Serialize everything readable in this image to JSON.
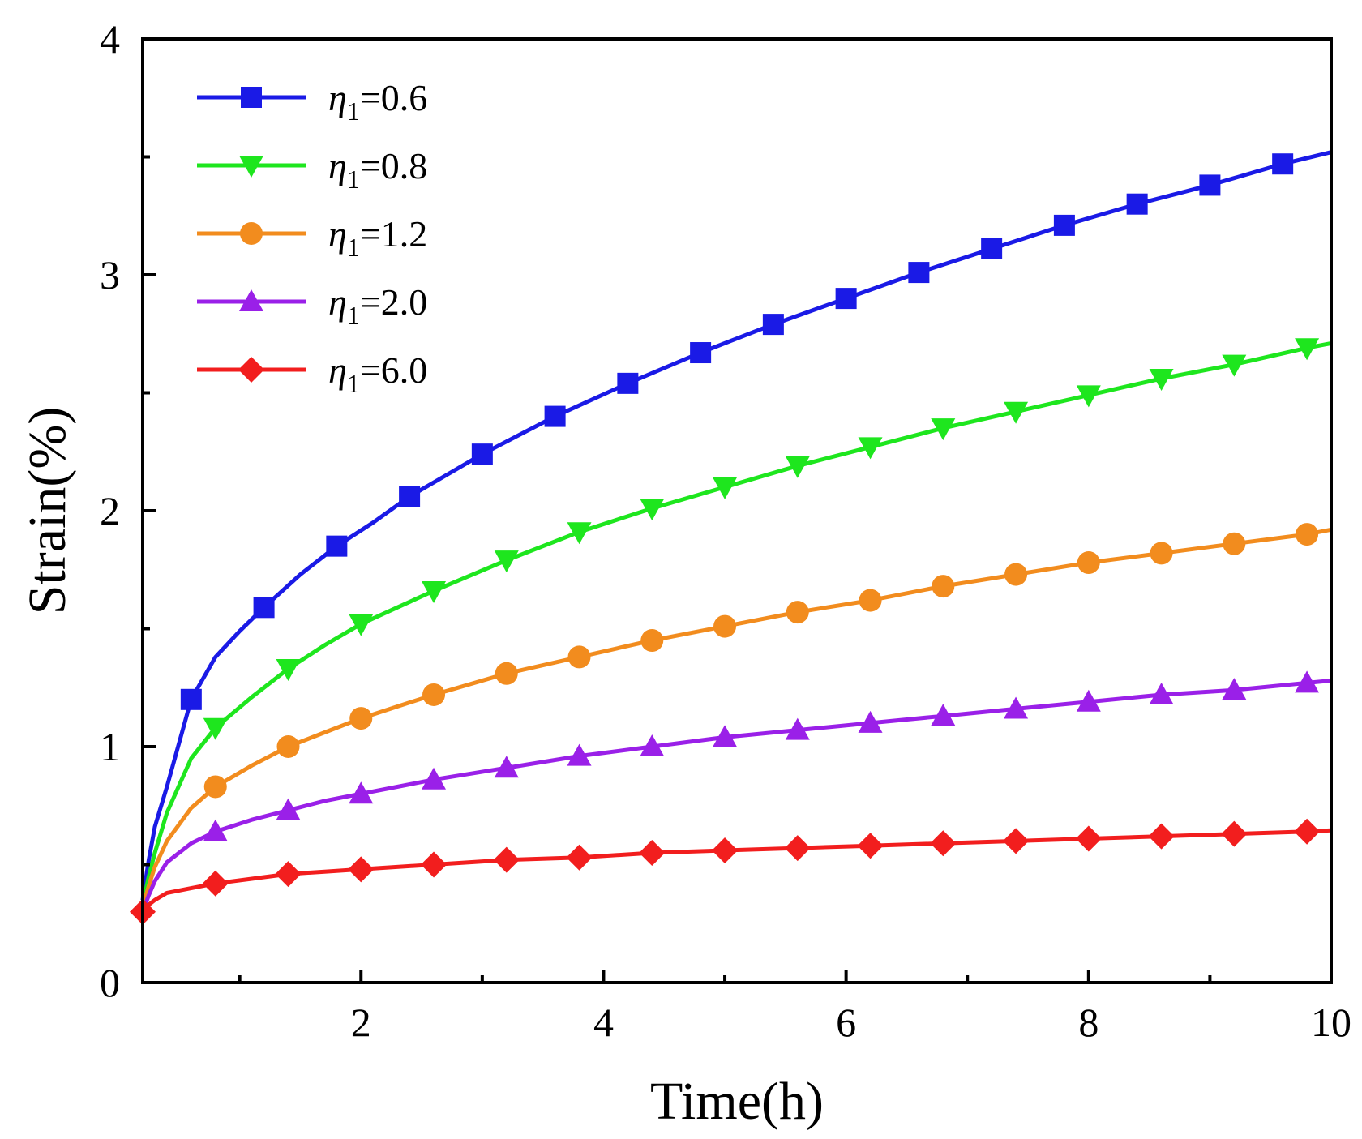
{
  "chart_data": {
    "type": "line",
    "title": "",
    "xlabel": "Time(h)",
    "ylabel": "Strain(%)",
    "xlim": [
      0.2,
      10
    ],
    "ylim": [
      0,
      4
    ],
    "x_major_ticks": [
      2,
      4,
      6,
      8,
      10
    ],
    "x_minor_ticks": [
      1,
      3,
      5,
      7,
      9
    ],
    "y_major_ticks": [
      0,
      1,
      2,
      3,
      4
    ],
    "y_minor_ticks": [
      0.5,
      1.5,
      2.5,
      3.5
    ],
    "x_tick_labels": [
      "2",
      "4",
      "6",
      "8",
      "10"
    ],
    "y_tick_labels": [
      "0",
      "1",
      "2",
      "3",
      "4"
    ],
    "grid": false,
    "legend_position": "top-left",
    "series": [
      {
        "name": "η1=0.6",
        "symbol": "η",
        "subscript": "1",
        "value_label": "=0.6",
        "color": "#1a1ae6",
        "marker": "square",
        "x": [
          0.2,
          0.25,
          0.3,
          0.4,
          0.6,
          0.8,
          1.0,
          1.2,
          1.5,
          1.8,
          2.1,
          2.4,
          2.7,
          3.0,
          3.6,
          4.2,
          4.8,
          5.4,
          6.0,
          6.6,
          7.2,
          7.8,
          8.4,
          9.0,
          9.6,
          10.0
        ],
        "y": [
          0.35,
          0.52,
          0.66,
          0.83,
          1.2,
          1.38,
          1.49,
          1.59,
          1.73,
          1.85,
          1.95,
          2.06,
          2.15,
          2.24,
          2.4,
          2.54,
          2.67,
          2.79,
          2.9,
          3.01,
          3.11,
          3.21,
          3.3,
          3.38,
          3.47,
          3.52
        ],
        "markers_x": [
          0.6,
          1.2,
          1.8,
          2.4,
          3.0,
          3.6,
          4.2,
          4.8,
          5.4,
          6.0,
          6.6,
          7.2,
          7.8,
          8.4,
          9.0,
          9.6
        ]
      },
      {
        "name": "η1=0.8",
        "symbol": "η",
        "subscript": "1",
        "value_label": "=0.8",
        "color": "#1ee61e",
        "marker": "triangle-down",
        "x": [
          0.2,
          0.25,
          0.3,
          0.4,
          0.6,
          0.8,
          1.1,
          1.4,
          1.7,
          2.0,
          2.3,
          2.6,
          3.2,
          3.8,
          4.4,
          5.0,
          5.6,
          6.2,
          6.8,
          7.4,
          8.0,
          8.6,
          9.2,
          9.8,
          10.0
        ],
        "y": [
          0.33,
          0.45,
          0.55,
          0.72,
          0.95,
          1.08,
          1.21,
          1.33,
          1.43,
          1.52,
          1.59,
          1.66,
          1.79,
          1.91,
          2.01,
          2.1,
          2.19,
          2.27,
          2.35,
          2.42,
          2.49,
          2.56,
          2.62,
          2.69,
          2.71
        ],
        "markers_x": [
          0.8,
          1.4,
          2.0,
          2.6,
          3.2,
          3.8,
          4.4,
          5.0,
          5.6,
          6.2,
          6.8,
          7.4,
          8.0,
          8.6,
          9.2,
          9.8
        ]
      },
      {
        "name": "η1=1.2",
        "symbol": "η",
        "subscript": "1",
        "value_label": "=1.2",
        "color": "#f28c1e",
        "marker": "circle",
        "x": [
          0.2,
          0.25,
          0.3,
          0.4,
          0.6,
          0.8,
          1.1,
          1.4,
          1.7,
          2.0,
          2.3,
          2.6,
          3.2,
          3.8,
          4.4,
          5.0,
          5.6,
          6.2,
          6.8,
          7.4,
          8.0,
          8.6,
          9.2,
          9.8,
          10.0
        ],
        "y": [
          0.32,
          0.41,
          0.49,
          0.6,
          0.74,
          0.83,
          0.92,
          1.0,
          1.06,
          1.12,
          1.17,
          1.22,
          1.31,
          1.38,
          1.45,
          1.51,
          1.57,
          1.62,
          1.68,
          1.73,
          1.78,
          1.82,
          1.86,
          1.9,
          1.92
        ],
        "markers_x": [
          0.8,
          1.4,
          2.0,
          2.6,
          3.2,
          3.8,
          4.4,
          5.0,
          5.6,
          6.2,
          6.8,
          7.4,
          8.0,
          8.6,
          9.2,
          9.8
        ]
      },
      {
        "name": "η1=2.0",
        "symbol": "η",
        "subscript": "1",
        "value_label": "=2.0",
        "color": "#9a20e8",
        "marker": "triangle-up",
        "x": [
          0.2,
          0.25,
          0.3,
          0.4,
          0.6,
          0.8,
          1.1,
          1.4,
          1.7,
          2.0,
          2.3,
          2.6,
          3.2,
          3.8,
          4.4,
          5.0,
          5.6,
          6.2,
          6.8,
          7.4,
          8.0,
          8.6,
          9.2,
          9.8,
          10.0
        ],
        "y": [
          0.3,
          0.37,
          0.43,
          0.51,
          0.59,
          0.64,
          0.69,
          0.73,
          0.77,
          0.8,
          0.83,
          0.86,
          0.91,
          0.96,
          1.0,
          1.04,
          1.07,
          1.1,
          1.13,
          1.16,
          1.19,
          1.22,
          1.24,
          1.27,
          1.28
        ],
        "markers_x": [
          0.8,
          1.4,
          2.0,
          2.6,
          3.2,
          3.8,
          4.4,
          5.0,
          5.6,
          6.2,
          6.8,
          7.4,
          8.0,
          8.6,
          9.2,
          9.8
        ]
      },
      {
        "name": "η1=6.0",
        "symbol": "η",
        "subscript": "1",
        "value_label": "=6.0",
        "color": "#f21e1e",
        "marker": "diamond",
        "x": [
          0.2,
          0.25,
          0.3,
          0.4,
          0.6,
          0.8,
          1.1,
          1.4,
          1.7,
          2.0,
          2.6,
          3.2,
          3.8,
          4.4,
          5.0,
          5.6,
          6.2,
          6.8,
          7.4,
          8.0,
          8.6,
          9.2,
          9.8,
          10.0
        ],
        "y": [
          0.3,
          0.33,
          0.35,
          0.38,
          0.4,
          0.42,
          0.44,
          0.46,
          0.47,
          0.48,
          0.5,
          0.52,
          0.53,
          0.55,
          0.56,
          0.57,
          0.58,
          0.59,
          0.6,
          0.61,
          0.62,
          0.63,
          0.64,
          0.645
        ],
        "markers_x": [
          0.2,
          0.8,
          1.4,
          2.0,
          2.6,
          3.2,
          3.8,
          4.4,
          5.0,
          5.6,
          6.2,
          6.8,
          7.4,
          8.0,
          8.6,
          9.2,
          9.8
        ]
      }
    ]
  }
}
